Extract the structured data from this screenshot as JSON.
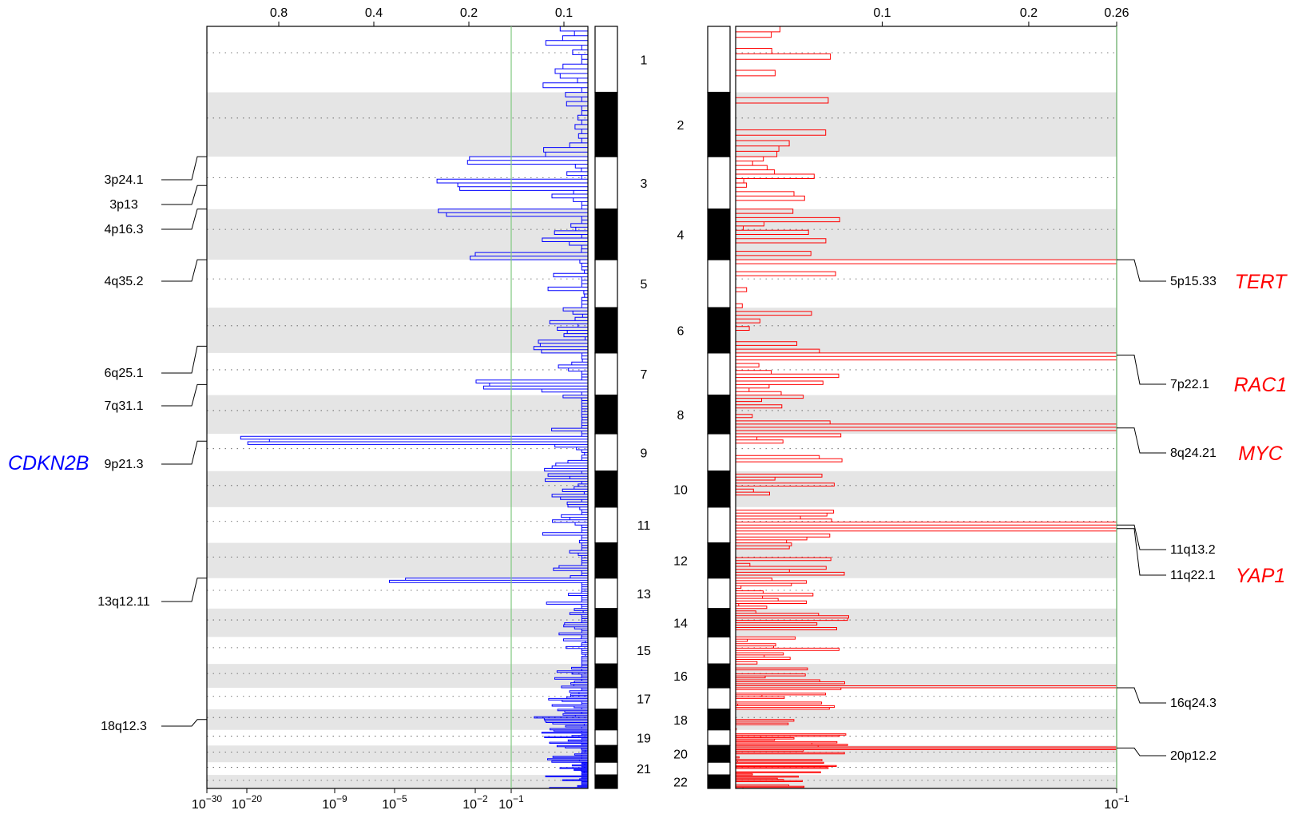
{
  "chart_data": [
    {
      "type": "step",
      "series_color": "#0000ff",
      "threshold_color": "#7fc97f",
      "top_axis_ticks": [
        "0.8",
        "0.4",
        "0.2",
        "0.1"
      ],
      "top_axis_values": [
        0.8,
        0.4,
        0.2,
        0.1
      ],
      "bottom_axis_ticks": [
        {
          "base": "10",
          "exp": "−30"
        },
        {
          "base": "10",
          "exp": "−20"
        },
        {
          "base": "10",
          "exp": "−9"
        },
        {
          "base": "10",
          "exp": "−5"
        },
        {
          "base": "10",
          "exp": "−2"
        },
        {
          "base": "10",
          "exp": "−1"
        }
      ],
      "gene_label": "CDKN2B",
      "gene_label_color": "#0000ff",
      "peak_labels": [
        {
          "label": "3p24.1",
          "chr": 3,
          "pos": 0.0
        },
        {
          "label": "3p13",
          "chr": 3,
          "pos": 0.55
        },
        {
          "label": "4p16.3",
          "chr": 4,
          "pos": 0.0
        },
        {
          "label": "4q35.2",
          "chr": 4,
          "pos": 1.0
        },
        {
          "label": "6q25.1",
          "chr": 6,
          "pos": 0.85
        },
        {
          "label": "7q31.1",
          "chr": 7,
          "pos": 0.75
        },
        {
          "label": "9p21.3",
          "chr": 9,
          "pos": 0.2
        },
        {
          "label": "13q12.11",
          "chr": 13,
          "pos": 0.0
        },
        {
          "label": "18q12.3",
          "chr": 18,
          "pos": 0.5
        }
      ],
      "peak_strengths": {
        "3p24.1": 0.35,
        "3p13": 0.4,
        "4p16.3": 0.4,
        "4q35.2": 0.35,
        "6q25.1": 0.15,
        "7q31.1": 0.3,
        "9p21.3": 1.0,
        "13q12.11": 0.55,
        "18q12.3": 0.15
      },
      "threshold": 0.2
    },
    {
      "type": "step",
      "series_color": "#ff0000",
      "threshold_color": "#7fc97f",
      "top_axis_ticks": [
        "0.1",
        "0.2",
        "0.26"
      ],
      "top_axis_values": [
        0.1,
        0.2,
        0.26
      ],
      "bottom_axis_ticks": [
        {
          "base": "10",
          "exp": "−1"
        }
      ],
      "chromosomes": [
        "1",
        "2",
        "3",
        "4",
        "5",
        "6",
        "7",
        "8",
        "9",
        "10",
        "11",
        "12",
        "13",
        "14",
        "15",
        "16",
        "17",
        "18",
        "19",
        "20",
        "21",
        "22"
      ],
      "left_chromosome_labels": [
        "1",
        "3",
        "5",
        "7",
        "9",
        "11",
        "13",
        "15",
        "17",
        "19",
        "21"
      ],
      "right_chromosome_labels": [
        "2",
        "4",
        "6",
        "8",
        "10",
        "12",
        "14",
        "16",
        "18",
        "20",
        "22"
      ],
      "peak_labels": [
        {
          "label": "5p15.33",
          "chr": 5,
          "pos": 0.0,
          "gene": "TERT"
        },
        {
          "label": "7p22.1",
          "chr": 7,
          "pos": 0.05,
          "gene": "RAC1"
        },
        {
          "label": "8q24.21",
          "chr": 8,
          "pos": 0.85,
          "gene": "MYC"
        },
        {
          "label": "11q13.2",
          "chr": 11,
          "pos": 0.5,
          "gene": ""
        },
        {
          "label": "11q22.1",
          "chr": 11,
          "pos": 0.6,
          "gene": "YAP1"
        },
        {
          "label": "16q24.3",
          "chr": 16,
          "pos": 1.0,
          "gene": ""
        },
        {
          "label": "20p12.2",
          "chr": 20,
          "pos": 0.15,
          "gene": ""
        }
      ],
      "gene_label_color": "#ff0000"
    }
  ]
}
